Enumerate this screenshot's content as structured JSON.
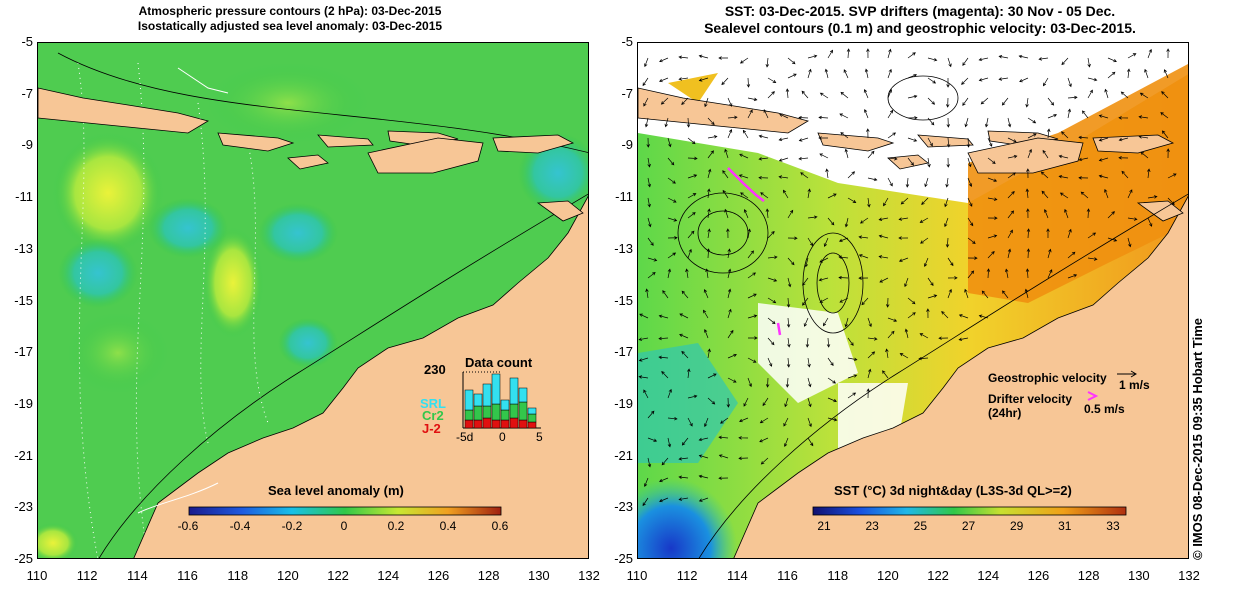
{
  "left_panel": {
    "title_line1": "Atmospheric pressure contours (2 hPa): 03-Dec-2015",
    "title_line2": "Isostatically adjusted sea level anomaly: 03-Dec-2015",
    "y_ticks": [
      "-5",
      "-7",
      "-9",
      "-11",
      "-13",
      "-15",
      "-17",
      "-19",
      "-21",
      "-23",
      "-25"
    ],
    "x_ticks": [
      "110",
      "112",
      "114",
      "116",
      "118",
      "120",
      "122",
      "124",
      "126",
      "128",
      "130",
      "132"
    ],
    "colorbar": {
      "title": "Sea level anomaly (m)",
      "ticks": [
        "-0.6",
        "-0.4",
        "-0.2",
        "0",
        "0.2",
        "0.4",
        "0.6"
      ],
      "min": -0.6,
      "max": 0.6
    },
    "data_count": {
      "title": "Data count",
      "max_label": "230",
      "series": [
        {
          "name": "SRL",
          "color": "#33e0f0"
        },
        {
          "name": "Cr2",
          "color": "#33c64b"
        },
        {
          "name": "J-2",
          "color": "#e01010"
        }
      ],
      "x_labels": [
        "-5d",
        "0",
        "5"
      ]
    }
  },
  "right_panel": {
    "title_line1": "SST: 03-Dec-2015. SVP drifters (magenta): 30 Nov - 05 Dec.",
    "title_line2": "Sealevel contours (0.1 m) and geostrophic velocity: 03-Dec-2015.",
    "y_ticks": [
      "-5",
      "-7",
      "-9",
      "-11",
      "-13",
      "-15",
      "-17",
      "-19",
      "-21",
      "-23",
      "-25"
    ],
    "x_ticks": [
      "110",
      "112",
      "114",
      "116",
      "118",
      "120",
      "122",
      "124",
      "126",
      "128",
      "130",
      "132"
    ],
    "colorbar": {
      "title": "SST (°C) 3d night&day (L3S-3d QL>=2)",
      "ticks": [
        "21",
        "23",
        "25",
        "27",
        "29",
        "31",
        "33"
      ],
      "min": 20.5,
      "max": 33.5
    },
    "legend": {
      "geostrophic_label": "Geostrophic velocity",
      "geostrophic_scale": "1 m/s",
      "drifter_label": "Drifter velocity",
      "drifter_sub": "(24hr)",
      "drifter_scale": "0.5 m/s"
    }
  },
  "copyright": "© IMOS 08-Dec-2015 09:35 Hobart Time",
  "colors": {
    "land": "#f7c696",
    "drifter": "#ff33ff"
  }
}
